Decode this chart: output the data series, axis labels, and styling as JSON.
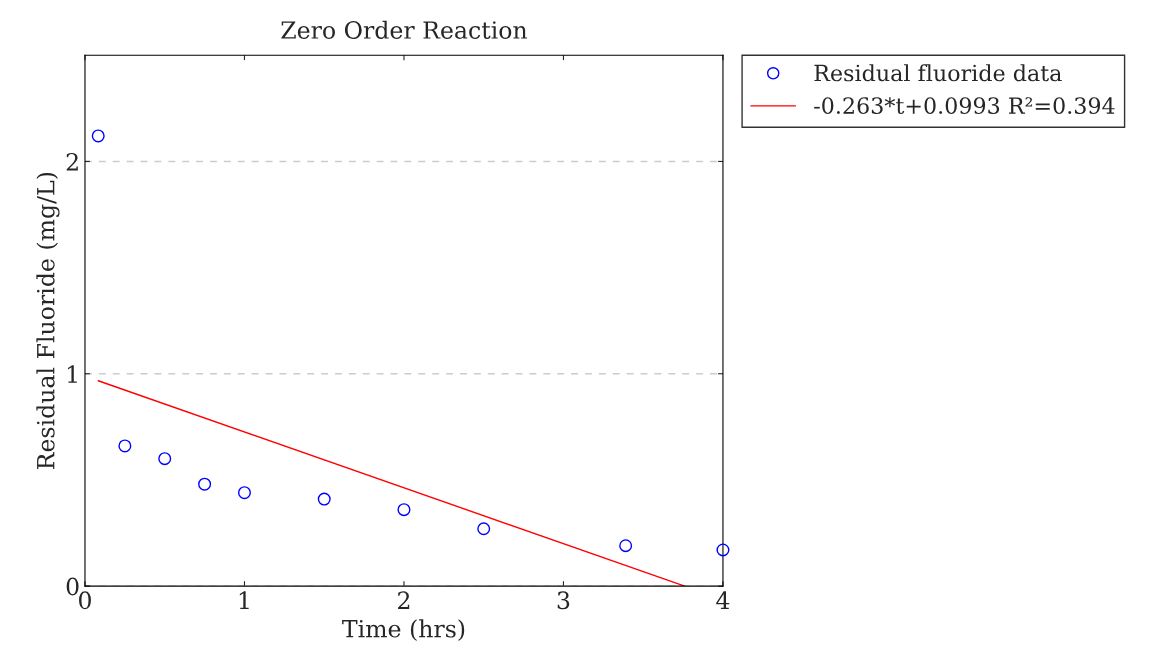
{
  "chart_data": {
    "type": "scatter",
    "title": "Zero Order Reaction",
    "xlabel": "Time (hrs)",
    "ylabel": "Residual Fluoride (mg/L)",
    "xlim": [
      0,
      4
    ],
    "ylim": [
      0,
      2.5
    ],
    "xticks": [
      0,
      1,
      2,
      3,
      4
    ],
    "yticks": [
      0,
      1,
      2
    ],
    "grid": "y",
    "legend": "top right",
    "series": [
      {
        "name": "Residual fluoride data",
        "color": "#0000ff",
        "marker": "circle",
        "x": [
          0.083,
          0.25,
          0.5,
          0.75,
          1.0,
          1.5,
          2.0,
          2.5,
          3.39,
          4.0
        ],
        "values": [
          2.12,
          0.66,
          0.6,
          0.48,
          0.44,
          0.41,
          0.36,
          0.27,
          0.19,
          0.17
        ]
      },
      {
        "name": "-0.263*t+0.0993 R²=0.394",
        "type": "line",
        "color": "#ff0000",
        "line_style": "solid",
        "x": [
          0.083,
          3.76
        ],
        "values": [
          0.967,
          0.0
        ]
      }
    ]
  }
}
